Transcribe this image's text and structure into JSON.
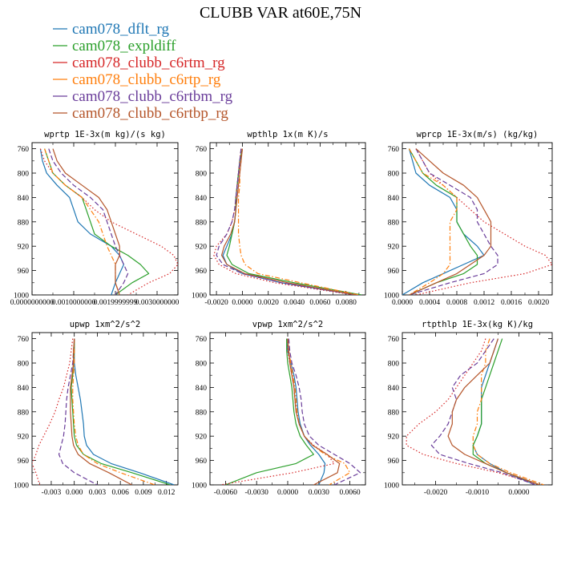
{
  "figure_title": "CLUBB VAR at60E,75N",
  "legend": [
    {
      "label": "cam078_dflt_rg",
      "color": "#1f77b4",
      "dash": "solid"
    },
    {
      "label": "cam078_expldiff",
      "color": "#2ca02c",
      "dash": "solid"
    },
    {
      "label": "cam078_clubb_c6rtm_rg",
      "color": "#d62728",
      "dash": "dot"
    },
    {
      "label": "cam078_clubb_c6rtp_rg",
      "color": "#ff7f0e",
      "dash": "dashdot"
    },
    {
      "label": "cam078_clubb_c6rtbm_rg",
      "color": "#6a3d9a",
      "dash": "dash"
    },
    {
      "label": "cam078_clubb_c6rtbp_rg",
      "color": "#b5562b",
      "dash": "solid"
    }
  ],
  "chart_data": [
    {
      "type": "line",
      "title": "wprtp  1E-3x(m kg)/(s kg)",
      "xlim": [
        0,
        0.0035
      ],
      "ylim": [
        1000,
        750
      ],
      "xticks": [
        0.0,
        0.001,
        0.002,
        0.003
      ],
      "xtick_labels": [
        "0.0000000000",
        "0.0010000000",
        "0.0019999999",
        "0.0030000000"
      ],
      "yticks": [
        760,
        800,
        840,
        880,
        920,
        960,
        1000
      ],
      "y": [
        760,
        780,
        800,
        820,
        840,
        860,
        880,
        900,
        920,
        935,
        950,
        965,
        980,
        1000
      ],
      "series": [
        {
          "name": "cam078_dflt_rg",
          "values": [
            0.0002,
            0.00025,
            0.00035,
            0.0006,
            0.0009,
            0.001,
            0.0011,
            0.0014,
            0.0019,
            0.0021,
            0.0022,
            0.0021,
            0.002,
            0.0019
          ]
        },
        {
          "name": "cam078_expldiff",
          "values": [
            0.0003,
            0.0004,
            0.0005,
            0.0008,
            0.0012,
            0.0013,
            0.0014,
            0.0015,
            0.0019,
            0.0023,
            0.0026,
            0.0028,
            0.0024,
            0.002
          ]
        },
        {
          "name": "cam078_clubb_c6rtm_rg",
          "values": [
            0.0002,
            0.0003,
            0.0005,
            0.0008,
            0.0012,
            0.0015,
            0.0019,
            0.0025,
            0.0031,
            0.0034,
            0.0035,
            0.0033,
            0.0028,
            0.0023
          ]
        },
        {
          "name": "cam078_clubb_c6rtp_rg",
          "values": [
            0.0003,
            0.0004,
            0.0005,
            0.0008,
            0.0012,
            0.0014,
            0.0016,
            0.0017,
            0.0018,
            0.0019,
            0.002,
            0.002,
            0.002,
            0.0021
          ]
        },
        {
          "name": "cam078_clubb_c6rtbm_rg",
          "values": [
            0.0004,
            0.0005,
            0.0007,
            0.001,
            0.0014,
            0.0017,
            0.0018,
            0.0019,
            0.002,
            0.0021,
            0.0022,
            0.0023,
            0.0022,
            0.002
          ]
        },
        {
          "name": "cam078_clubb_c6rtbp_rg",
          "values": [
            0.0005,
            0.0006,
            0.0008,
            0.0012,
            0.0016,
            0.0018,
            0.0019,
            0.002,
            0.0021,
            0.0021,
            0.002,
            0.002,
            0.002,
            0.0021
          ]
        }
      ]
    },
    {
      "type": "line",
      "title": "wpthlp  1x(m K)/s",
      "xlim": [
        -0.0025,
        0.0095
      ],
      "ylim": [
        1000,
        750
      ],
      "xticks": [
        -0.002,
        0.0,
        0.002,
        0.004,
        0.006,
        0.008
      ],
      "xtick_labels": [
        "-0.0020",
        "0.0000",
        "0.0020",
        "0.0040",
        "0.0060",
        "0.0080"
      ],
      "yticks": [
        760,
        800,
        840,
        880,
        920,
        960,
        1000
      ],
      "y": [
        760,
        780,
        800,
        820,
        840,
        860,
        880,
        900,
        920,
        935,
        950,
        965,
        980,
        1000
      ],
      "series": [
        {
          "name": "cam078_dflt_rg",
          "values": [
            0.0,
            -0.0002,
            -0.0003,
            -0.0004,
            -0.0005,
            -0.0005,
            -0.0006,
            -0.0008,
            -0.0012,
            -0.0015,
            -0.0012,
            0.0,
            0.003,
            0.0088
          ]
        },
        {
          "name": "cam078_expldiff",
          "values": [
            0.0,
            -0.0002,
            -0.0003,
            -0.0004,
            -0.0005,
            -0.0005,
            -0.0006,
            -0.0008,
            -0.001,
            -0.0012,
            -0.0008,
            0.0005,
            0.004,
            0.0092
          ]
        },
        {
          "name": "cam078_clubb_c6rtm_rg",
          "values": [
            -0.0001,
            -0.0002,
            -0.0003,
            -0.0004,
            -0.0005,
            -0.0006,
            -0.0008,
            -0.0012,
            -0.002,
            -0.0022,
            -0.0018,
            -0.0005,
            0.0025,
            0.0086
          ]
        },
        {
          "name": "cam078_clubb_c6rtp_rg",
          "values": [
            0.0,
            -0.0001,
            -0.0002,
            -0.0002,
            -0.0003,
            -0.0003,
            -0.0003,
            -0.0003,
            -0.0002,
            -0.0001,
            0.0002,
            0.0012,
            0.0045,
            0.009
          ]
        },
        {
          "name": "cam078_clubb_c6rtbm_rg",
          "values": [
            -0.0001,
            -0.0002,
            -0.0003,
            -0.0004,
            -0.0005,
            -0.0006,
            -0.0008,
            -0.0012,
            -0.0018,
            -0.002,
            -0.0015,
            0.0,
            0.003,
            0.0087
          ]
        },
        {
          "name": "cam078_clubb_c6rtbp_rg",
          "values": [
            0.0,
            -0.0001,
            -0.0002,
            -0.0003,
            -0.0004,
            -0.0005,
            -0.0006,
            -0.0009,
            -0.0014,
            -0.0016,
            -0.0012,
            0.0002,
            0.0035,
            0.0088
          ]
        }
      ]
    },
    {
      "type": "line",
      "title": "wprcp  1E-3x(m/s) (kg/kg)",
      "xlim": [
        0,
        0.0022
      ],
      "ylim": [
        1000,
        750
      ],
      "xticks": [
        0.0,
        0.0004,
        0.0008,
        0.0012,
        0.0016,
        0.002
      ],
      "xtick_labels": [
        "0.0000",
        "0.0004",
        "0.0008",
        "0.0012",
        "0.0016",
        "0.0020"
      ],
      "yticks": [
        760,
        800,
        840,
        880,
        920,
        960,
        1000
      ],
      "y": [
        760,
        780,
        800,
        820,
        840,
        860,
        880,
        900,
        920,
        935,
        950,
        965,
        980,
        1000
      ],
      "series": [
        {
          "name": "cam078_dflt_rg",
          "values": [
            0.0001,
            0.00015,
            0.0002,
            0.0004,
            0.0007,
            0.0008,
            0.0008,
            0.0009,
            0.0011,
            0.0012,
            0.0009,
            0.0006,
            0.0003,
            0.0
          ]
        },
        {
          "name": "cam078_expldiff",
          "values": [
            0.0001,
            0.0002,
            0.0003,
            0.0005,
            0.0008,
            0.0008,
            0.0008,
            0.0009,
            0.001,
            0.0011,
            0.0011,
            0.0009,
            0.0005,
            0.0001
          ]
        },
        {
          "name": "cam078_clubb_c6rtm_rg",
          "values": [
            0.0002,
            0.0003,
            0.0004,
            0.0006,
            0.0008,
            0.001,
            0.0012,
            0.0015,
            0.0018,
            0.0021,
            0.0022,
            0.0018,
            0.001,
            0.0002
          ]
        },
        {
          "name": "cam078_clubb_c6rtp_rg",
          "values": [
            0.0001,
            0.0002,
            0.0003,
            0.0006,
            0.0008,
            0.0008,
            0.0007,
            0.0007,
            0.0007,
            0.0007,
            0.0007,
            0.0006,
            0.0004,
            0.0001
          ]
        },
        {
          "name": "cam078_clubb_c6rtbm_rg",
          "values": [
            0.0002,
            0.0003,
            0.0004,
            0.0007,
            0.001,
            0.0011,
            0.0011,
            0.0012,
            0.0013,
            0.0014,
            0.0014,
            0.0012,
            0.0007,
            0.0001
          ]
        },
        {
          "name": "cam078_clubb_c6rtbp_rg",
          "values": [
            0.0002,
            0.0004,
            0.0006,
            0.0009,
            0.0011,
            0.0012,
            0.0013,
            0.0013,
            0.0013,
            0.0012,
            0.001,
            0.0008,
            0.0005,
            0.0001
          ]
        }
      ]
    },
    {
      "type": "line",
      "title": "upwp  1xm^2/s^2",
      "xlim": [
        -0.0055,
        0.0135
      ],
      "ylim": [
        1000,
        750
      ],
      "xticks": [
        -0.003,
        0.0,
        0.003,
        0.006,
        0.009,
        0.012
      ],
      "xtick_labels": [
        "-0.003",
        "0.000",
        "0.003",
        "0.006",
        "0.009",
        "0.012"
      ],
      "yticks": [
        760,
        800,
        840,
        880,
        920,
        960,
        1000
      ],
      "y": [
        760,
        780,
        800,
        820,
        840,
        860,
        880,
        900,
        920,
        935,
        950,
        965,
        980,
        1000
      ],
      "series": [
        {
          "name": "cam078_dflt_rg",
          "values": [
            0.0,
            0.0,
            0.0,
            0.0002,
            0.0005,
            0.0008,
            0.001,
            0.0012,
            0.0013,
            0.0016,
            0.0025,
            0.0048,
            0.0085,
            0.013
          ]
        },
        {
          "name": "cam078_expldiff",
          "values": [
            0.0,
            0.0,
            -0.0001,
            -0.0002,
            -0.0004,
            -0.0003,
            -0.0002,
            -0.0001,
            0.0,
            0.0003,
            0.0012,
            0.0035,
            0.0075,
            0.0125
          ]
        },
        {
          "name": "cam078_clubb_c6rtm_rg",
          "values": [
            -0.0002,
            -0.0004,
            -0.0006,
            -0.001,
            -0.0014,
            -0.002,
            -0.0025,
            -0.0032,
            -0.004,
            -0.0046,
            -0.005,
            -0.0055,
            -0.005,
            -0.0045
          ]
        },
        {
          "name": "cam078_clubb_c6rtp_rg",
          "values": [
            0.0,
            0.0,
            0.0,
            -0.0001,
            -0.0002,
            -0.0002,
            -0.0001,
            0.0,
            0.0002,
            0.0005,
            0.0012,
            0.003,
            0.006,
            0.0105
          ]
        },
        {
          "name": "cam078_clubb_c6rtbm_rg",
          "values": [
            0.0,
            -0.0001,
            -0.0002,
            -0.0005,
            -0.0008,
            -0.001,
            -0.0011,
            -0.0012,
            -0.0014,
            -0.0017,
            -0.002,
            -0.0015,
            0.0,
            0.003
          ]
        },
        {
          "name": "cam078_clubb_c6rtbp_rg",
          "values": [
            0.0,
            -0.0001,
            -0.0001,
            -0.0003,
            -0.0005,
            -0.0005,
            -0.0005,
            -0.0004,
            -0.0003,
            -0.0001,
            0.0005,
            0.002,
            0.0045,
            0.0075
          ]
        }
      ]
    },
    {
      "type": "line",
      "title": "vpwp  1xm^2/s^2",
      "xlim": [
        -0.0075,
        0.0075
      ],
      "ylim": [
        1000,
        750
      ],
      "xticks": [
        -0.006,
        -0.003,
        0.0,
        0.003,
        0.006
      ],
      "xtick_labels": [
        "-0.0060",
        "-0.0030",
        "0.0000",
        "0.0030",
        "0.0060"
      ],
      "yticks": [
        760,
        800,
        840,
        880,
        920,
        960,
        1000
      ],
      "y": [
        760,
        780,
        800,
        820,
        840,
        860,
        880,
        900,
        920,
        935,
        950,
        965,
        980,
        1000
      ],
      "series": [
        {
          "name": "cam078_dflt_rg",
          "values": [
            -0.0001,
            0.0,
            0.0003,
            0.0006,
            0.0008,
            0.0009,
            0.001,
            0.0012,
            0.0016,
            0.0022,
            0.003,
            0.0036,
            0.0035,
            0.003
          ]
        },
        {
          "name": "cam078_expldiff",
          "values": [
            -0.0001,
            -0.0001,
            0.0,
            0.0002,
            0.0004,
            0.0005,
            0.0006,
            0.0008,
            0.0012,
            0.0018,
            0.0025,
            0.0008,
            -0.003,
            -0.006
          ]
        },
        {
          "name": "cam078_clubb_c6rtm_rg",
          "values": [
            0.0,
            0.0,
            0.0002,
            0.0004,
            0.0006,
            0.0007,
            0.0008,
            0.0011,
            0.0016,
            0.0025,
            0.0038,
            0.0045,
            0.0005,
            -0.0065
          ]
        },
        {
          "name": "cam078_clubb_c6rtp_rg",
          "values": [
            0.0,
            0.0001,
            0.0003,
            0.0005,
            0.0007,
            0.0008,
            0.0009,
            0.0011,
            0.0016,
            0.0024,
            0.0036,
            0.0055,
            0.006,
            0.004
          ]
        },
        {
          "name": "cam078_clubb_c6rtbm_rg",
          "values": [
            0.0001,
            0.0002,
            0.0004,
            0.0008,
            0.0011,
            0.0013,
            0.0014,
            0.0016,
            0.0021,
            0.003,
            0.0045,
            0.006,
            0.007,
            0.0045
          ]
        },
        {
          "name": "cam078_clubb_c6rtbp_rg",
          "values": [
            0.0,
            0.0001,
            0.0002,
            0.0004,
            0.0006,
            0.0007,
            0.0008,
            0.0011,
            0.0016,
            0.0024,
            0.0038,
            0.005,
            0.0048,
            0.0025
          ]
        }
      ]
    },
    {
      "type": "line",
      "title": "rtpthlp  1E-3x(kg K)/kg",
      "xlim": [
        -0.0028,
        0.0008
      ],
      "ylim": [
        1000,
        750
      ],
      "xticks": [
        -0.002,
        -0.001,
        0.0
      ],
      "xtick_labels": [
        "-0.0020",
        "-0.0010",
        "0.0000"
      ],
      "yticks": [
        760,
        800,
        840,
        880,
        920,
        960,
        1000
      ],
      "y": [
        760,
        780,
        800,
        820,
        840,
        860,
        880,
        900,
        920,
        935,
        950,
        965,
        980,
        1000
      ],
      "series": [
        {
          "name": "cam078_dflt_rg",
          "values": [
            -0.0005,
            -0.0006,
            -0.0007,
            -0.0008,
            -0.0009,
            -0.0009,
            -0.0009,
            -0.0009,
            -0.001,
            -0.0011,
            -0.001,
            -0.0007,
            -0.0003,
            0.0004
          ]
        },
        {
          "name": "cam078_expldiff",
          "values": [
            -0.0004,
            -0.0005,
            -0.0006,
            -0.0007,
            -0.0008,
            -0.0009,
            -0.0009,
            -0.0009,
            -0.001,
            -0.0011,
            -0.0011,
            -0.0008,
            -0.0003,
            0.0005
          ]
        },
        {
          "name": "cam078_clubb_c6rtm_rg",
          "values": [
            -0.0008,
            -0.0009,
            -0.0011,
            -0.0013,
            -0.0015,
            -0.0017,
            -0.002,
            -0.0024,
            -0.0027,
            -0.0027,
            -0.0023,
            -0.0015,
            -0.0005,
            0.0005
          ]
        },
        {
          "name": "cam078_clubb_c6rtp_rg",
          "values": [
            -0.0007,
            -0.0008,
            -0.0008,
            -0.0009,
            -0.0009,
            -0.0009,
            -0.001,
            -0.001,
            -0.0011,
            -0.0011,
            -0.001,
            -0.0007,
            -0.0002,
            0.0006
          ]
        },
        {
          "name": "cam078_clubb_c6rtbm_rg",
          "values": [
            -0.0006,
            -0.0008,
            -0.001,
            -0.0014,
            -0.0016,
            -0.0015,
            -0.0016,
            -0.0017,
            -0.0019,
            -0.0021,
            -0.0019,
            -0.0012,
            -0.0004,
            0.0004
          ]
        },
        {
          "name": "cam078_clubb_c6rtbp_rg",
          "values": [
            -0.0005,
            -0.0006,
            -0.0007,
            -0.001,
            -0.0013,
            -0.0015,
            -0.0016,
            -0.0016,
            -0.0017,
            -0.0016,
            -0.0013,
            -0.0008,
            -0.0003,
            0.0005
          ]
        }
      ]
    }
  ]
}
